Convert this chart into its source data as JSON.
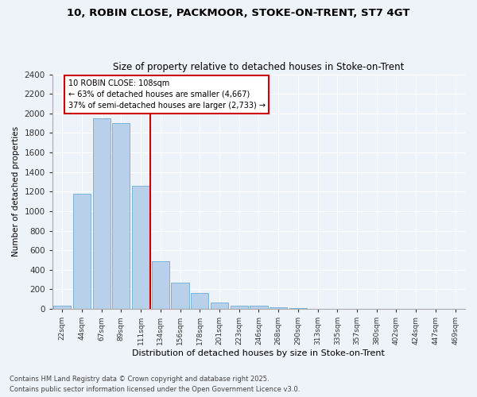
{
  "title1": "10, ROBIN CLOSE, PACKMOOR, STOKE-ON-TRENT, ST7 4GT",
  "title2": "Size of property relative to detached houses in Stoke-on-Trent",
  "xlabel": "Distribution of detached houses by size in Stoke-on-Trent",
  "ylabel": "Number of detached properties",
  "categories": [
    "22sqm",
    "44sqm",
    "67sqm",
    "89sqm",
    "111sqm",
    "134sqm",
    "156sqm",
    "178sqm",
    "201sqm",
    "223sqm",
    "246sqm",
    "268sqm",
    "290sqm",
    "313sqm",
    "335sqm",
    "357sqm",
    "380sqm",
    "402sqm",
    "424sqm",
    "447sqm",
    "469sqm"
  ],
  "values": [
    30,
    1175,
    1950,
    1900,
    1260,
    490,
    270,
    160,
    65,
    30,
    30,
    20,
    5,
    0,
    0,
    0,
    0,
    0,
    0,
    0,
    0
  ],
  "bar_color": "#b8d0ea",
  "bar_edge_color": "#6aaed6",
  "vline_color": "#cc0000",
  "annotation_title": "10 ROBIN CLOSE: 108sqm",
  "annotation_line1": "← 63% of detached houses are smaller (4,667)",
  "annotation_line2": "37% of semi-detached houses are larger (2,733) →",
  "annotation_box_color": "#cc0000",
  "ylim": [
    0,
    2400
  ],
  "yticks": [
    0,
    200,
    400,
    600,
    800,
    1000,
    1200,
    1400,
    1600,
    1800,
    2000,
    2200,
    2400
  ],
  "footer1": "Contains HM Land Registry data © Crown copyright and database right 2025.",
  "footer2": "Contains public sector information licensed under the Open Government Licence v3.0.",
  "bg_color": "#eef2f9"
}
